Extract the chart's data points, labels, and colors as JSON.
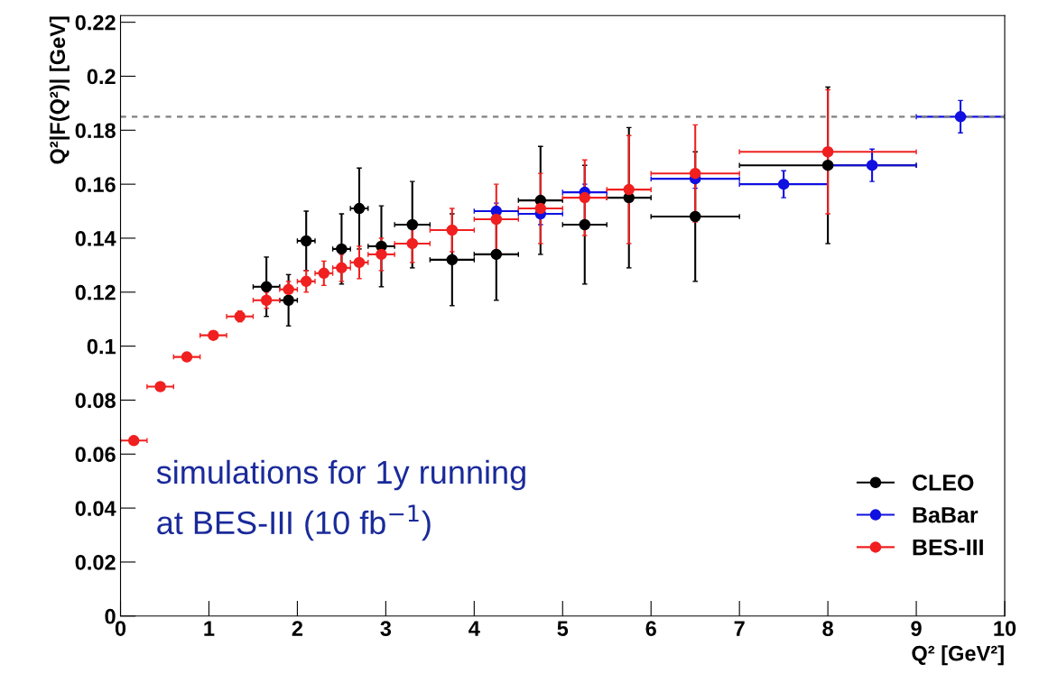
{
  "chart_data": {
    "type": "scatter",
    "xlabel": "Q² [GeV²]",
    "ylabel": "Q²|F(Q²)| [GeV]",
    "xlim": [
      0,
      10
    ],
    "ylim": [
      0,
      0.2225
    ],
    "xticks": [
      0,
      1,
      2,
      3,
      4,
      5,
      6,
      7,
      8,
      9,
      10
    ],
    "yticks": [
      0,
      0.02,
      0.04,
      0.06,
      0.08,
      0.1,
      0.12,
      0.14,
      0.16,
      0.18,
      0.2,
      0.22
    ],
    "marker": "circle",
    "legend": "bottom right",
    "grid": false,
    "ref_lines": [
      {
        "axis": "y",
        "value": 0.185,
        "color": "#808080",
        "line_style": "dashed"
      }
    ],
    "annotations": [
      "simulations for 1y running\nat BES-III (10 fb$^{−1}$)"
    ],
    "series": [
      {
        "name": "CLEO",
        "color": "#000000",
        "x": [
          1.65,
          1.9,
          2.1,
          2.5,
          2.7,
          2.95,
          3.3,
          3.75,
          4.25,
          4.75,
          5.25,
          5.75,
          6.5,
          8.0
        ],
        "values": [
          0.122,
          0.117,
          0.139,
          0.136,
          0.151,
          0.137,
          0.145,
          0.132,
          0.134,
          0.154,
          0.145,
          0.155,
          0.148,
          0.167
        ],
        "errors": [
          0.011,
          0.0095,
          0.011,
          0.013,
          0.015,
          0.015,
          0.016,
          0.017,
          0.017,
          0.02,
          0.022,
          0.026,
          0.024,
          0.029
        ],
        "xerrors": [
          0.15,
          0.1,
          0.1,
          0.1,
          0.1,
          0.15,
          0.2,
          0.25,
          0.25,
          0.25,
          0.25,
          0.25,
          0.5,
          1.0
        ]
      },
      {
        "name": "BaBar",
        "color": "#1010e0",
        "x": [
          4.25,
          4.75,
          5.25,
          6.5,
          7.5,
          8.5,
          9.5
        ],
        "values": [
          0.15,
          0.149,
          0.157,
          0.162,
          0.16,
          0.167,
          0.185
        ],
        "errors": [
          0.003,
          0.004,
          0.003,
          0.0035,
          0.005,
          0.006,
          0.006
        ],
        "xerrors": [
          0.25,
          0.25,
          0.25,
          0.5,
          0.5,
          0.5,
          0.5
        ]
      },
      {
        "name": "BES-III",
        "color": "#f02020",
        "x": [
          0.15,
          0.45,
          0.75,
          1.05,
          1.35,
          1.65,
          1.9,
          2.1,
          2.3,
          2.5,
          2.7,
          2.95,
          3.3,
          3.75,
          4.25,
          4.75,
          5.25,
          5.75,
          6.5,
          8.0
        ],
        "values": [
          0.065,
          0.085,
          0.096,
          0.104,
          0.111,
          0.117,
          0.121,
          0.124,
          0.127,
          0.129,
          0.131,
          0.134,
          0.138,
          0.143,
          0.147,
          0.151,
          0.155,
          0.158,
          0.164,
          0.172
        ],
        "errors": [
          0.001,
          0.001,
          0.001,
          0.0015,
          0.002,
          0.003,
          0.003,
          0.004,
          0.0045,
          0.005,
          0.006,
          0.006,
          0.007,
          0.008,
          0.013,
          0.013,
          0.014,
          0.02,
          0.018,
          0.023
        ],
        "xerrors": [
          0.15,
          0.15,
          0.15,
          0.15,
          0.15,
          0.15,
          0.1,
          0.1,
          0.1,
          0.1,
          0.1,
          0.15,
          0.2,
          0.25,
          0.25,
          0.25,
          0.25,
          0.25,
          0.5,
          1.0
        ]
      }
    ]
  }
}
